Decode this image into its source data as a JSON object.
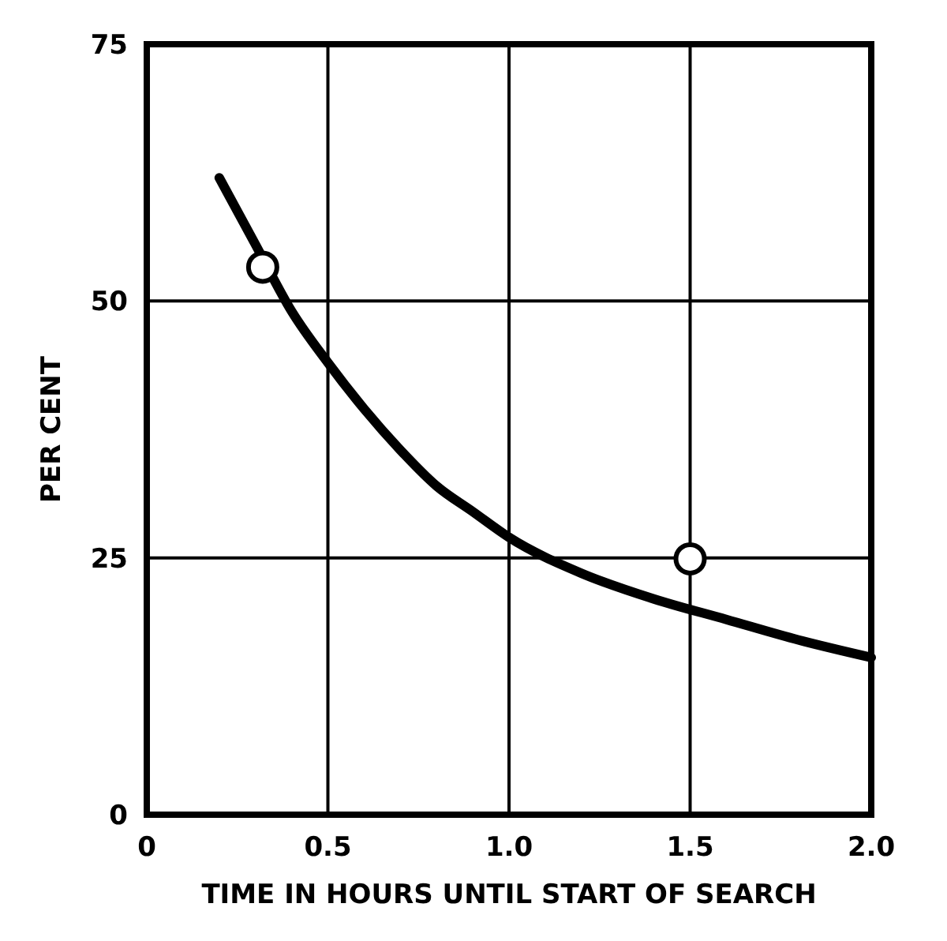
{
  "chart_data": {
    "type": "line",
    "xlabel": "TIME IN HOURS UNTIL START OF SEARCH",
    "ylabel": "PER CENT",
    "xlim": [
      0,
      2
    ],
    "ylim": [
      0,
      75
    ],
    "xticks": [
      0,
      {
        "value": 0.5,
        "label": "0.5"
      },
      {
        "value": 1,
        "label": "1.0"
      },
      {
        "value": 1.5,
        "label": "1.5"
      },
      {
        "value": 2,
        "label": "2.0"
      }
    ],
    "yticks": [
      0,
      25,
      50,
      75
    ],
    "grid": true,
    "series": [
      {
        "color": "#000000",
        "line_style": "solid",
        "marker": "none",
        "x": [
          0.2,
          0.3,
          0.4,
          0.5,
          0.6,
          0.7,
          0.8,
          0.9,
          1.0,
          1.2,
          1.4,
          1.6,
          1.8,
          2.0
        ],
        "values": [
          62,
          55.5,
          49,
          44,
          39.5,
          35.5,
          32,
          29.5,
          27,
          23.5,
          21,
          19,
          17,
          15.3
        ]
      },
      {
        "type": "scatter",
        "color": "#000000",
        "marker": "circle",
        "x": [
          0.32,
          1.5
        ],
        "values": [
          53.3,
          24.9
        ]
      }
    ]
  }
}
